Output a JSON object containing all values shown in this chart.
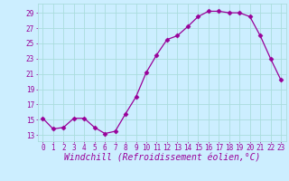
{
  "x": [
    0,
    1,
    2,
    3,
    4,
    5,
    6,
    7,
    8,
    9,
    10,
    11,
    12,
    13,
    14,
    15,
    16,
    17,
    18,
    19,
    20,
    21,
    22,
    23
  ],
  "y": [
    15.2,
    13.8,
    14.0,
    15.2,
    15.2,
    14.0,
    13.2,
    13.5,
    15.8,
    18.0,
    21.2,
    23.5,
    25.5,
    26.0,
    27.2,
    28.5,
    29.2,
    29.2,
    29.0,
    29.0,
    28.5,
    26.0,
    23.0,
    20.2
  ],
  "line_color": "#990099",
  "marker": "D",
  "marker_size": 2.5,
  "bg_color": "#cceeff",
  "grid_color": "#aadddd",
  "xlabel": "Windchill (Refroidissement éolien,°C)",
  "xlabel_color": "#990099",
  "ylabel_ticks": [
    13,
    15,
    17,
    19,
    21,
    23,
    25,
    27,
    29
  ],
  "xlim": [
    -0.5,
    23.5
  ],
  "ylim": [
    12.2,
    30.2
  ],
  "xtick_labels": [
    "0",
    "1",
    "2",
    "3",
    "4",
    "5",
    "6",
    "7",
    "8",
    "9",
    "10",
    "11",
    "12",
    "13",
    "14",
    "15",
    "16",
    "17",
    "18",
    "19",
    "20",
    "21",
    "22",
    "23"
  ],
  "tick_fontsize": 5.5,
  "xlabel_fontsize": 7.0
}
